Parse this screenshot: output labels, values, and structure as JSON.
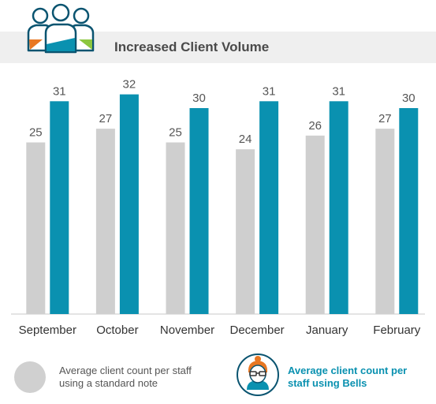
{
  "header": {
    "title": "Increased Client Volume"
  },
  "legend": {
    "standard_label": "Average client count per staff using a standard note",
    "bells_label": "Average client count per staff using Bells"
  },
  "colors": {
    "standard": "#cfcfcf",
    "bells": "#0a91b0",
    "icon_orange": "#e87722",
    "icon_green": "#8cc63f",
    "title_bg": "#efefef"
  },
  "icons": {
    "header": "group-of-people-icon",
    "legend_bells": "woman-with-glasses-icon",
    "legend_standard": "gray-circle-icon"
  },
  "chart_data": {
    "type": "bar",
    "title": "Increased Client Volume",
    "categories": [
      "September",
      "October",
      "November",
      "December",
      "January",
      "February"
    ],
    "series": [
      {
        "name": "Average client count per staff using a standard note",
        "values": [
          25,
          27,
          25,
          24,
          26,
          27
        ]
      },
      {
        "name": "Average client count per staff using Bells",
        "values": [
          31,
          32,
          30,
          31,
          31,
          30
        ]
      }
    ],
    "ylim": [
      0,
      35
    ],
    "grid": false,
    "legend": "bottom"
  }
}
